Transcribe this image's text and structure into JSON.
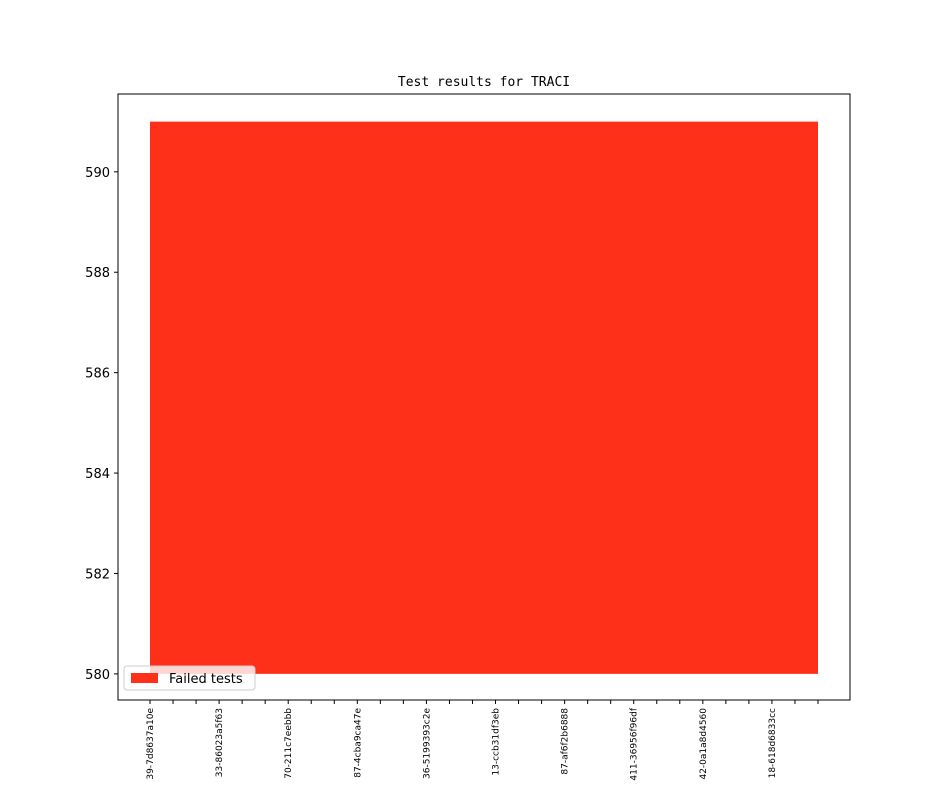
{
  "chart_data": {
    "type": "area",
    "title": "Test results for TRACI",
    "categories": [
      "39-7d8637a10e",
      null,
      null,
      "33-86023a5f63",
      null,
      null,
      "70-211c7eebbb",
      null,
      null,
      "87-4cba9ca47e",
      null,
      null,
      "36-5199393c2e",
      null,
      null,
      "13-ccb31df3eb",
      null,
      null,
      "87-af6f2b6888",
      null,
      null,
      "411-36956f96df",
      null,
      null,
      "42-0a1a8d4560",
      null,
      null,
      "18-618d6833cc",
      null,
      null
    ],
    "series": [
      {
        "name": "Failed tests",
        "color": "#ff3019",
        "base": 580,
        "values": [
          591,
          591,
          591,
          591,
          591,
          591,
          591,
          591,
          591,
          591,
          591,
          591,
          591,
          591,
          591,
          591,
          591,
          591,
          591,
          591,
          591,
          591,
          591,
          591,
          591,
          591,
          591,
          591,
          591,
          591
        ]
      }
    ],
    "ylim": [
      579.48,
      591.55
    ],
    "yticks": [
      580,
      582,
      584,
      586,
      588,
      590
    ],
    "legend": "lower left"
  }
}
